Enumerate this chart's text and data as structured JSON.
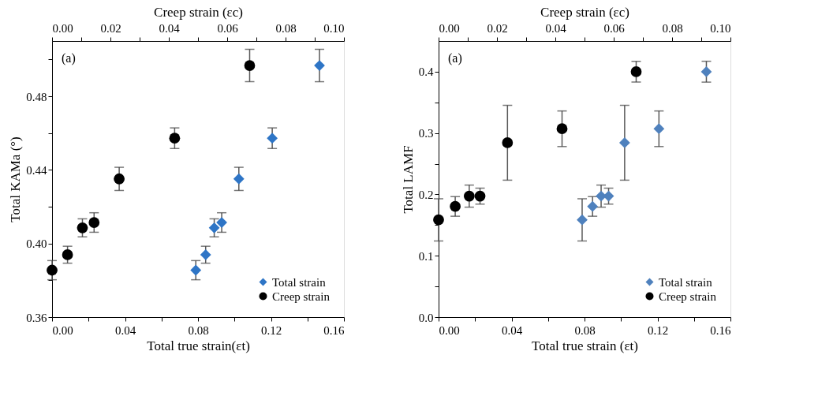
{
  "chart_data": [
    {
      "type": "scatter",
      "xlabel": "Total  true strain(εt)",
      "x2label": "Creep strain (εc)",
      "ylabel": "Total KAMa (°)",
      "xlim": [
        0,
        0.16
      ],
      "xticks": [
        {
          "value": 0,
          "label": "0.00"
        },
        {
          "value": 0.02,
          "label": null
        },
        {
          "value": 0.04,
          "label": "0.04"
        },
        {
          "value": 0.06,
          "label": null
        },
        {
          "value": 0.08,
          "label": "0.08"
        },
        {
          "value": 0.1,
          "label": null
        },
        {
          "value": 0.12,
          "label": "0.12"
        },
        {
          "value": 0.14,
          "label": null
        },
        {
          "value": 0.16,
          "label": "0.16"
        }
      ],
      "x2lim": [
        0,
        0.1
      ],
      "x2ticks": [
        {
          "value": 0,
          "label": "0.00"
        },
        {
          "value": 0.01,
          "label": null
        },
        {
          "value": 0.02,
          "label": "0.02"
        },
        {
          "value": 0.03,
          "label": null
        },
        {
          "value": 0.04,
          "label": "0.04"
        },
        {
          "value": 0.05,
          "label": null
        },
        {
          "value": 0.06,
          "label": "0.06"
        },
        {
          "value": 0.07,
          "label": null
        },
        {
          "value": 0.08,
          "label": "0.08"
        },
        {
          "value": 0.09,
          "label": null
        },
        {
          "value": 0.1,
          "label": "0.10"
        }
      ],
      "ylim": [
        0.36,
        0.51
      ],
      "yticks": [
        0.36,
        {
          "value": 0.38,
          "label": null
        },
        {
          "value": 0.4,
          "label": "0.40"
        },
        {
          "value": 0.42,
          "label": null
        },
        0.44,
        {
          "value": 0.46,
          "label": null
        },
        0.48,
        {
          "value": 0.5,
          "label": null
        }
      ],
      "grid": false,
      "legend": "bottom right",
      "annotations": [
        "(a)"
      ],
      "series": [
        {
          "name": "Total strain",
          "color": "#2e75c6",
          "marker": "diamond",
          "x": [
            0.0788,
            0.0842,
            0.0889,
            0.093,
            0.1024,
            0.1207,
            0.1466
          ],
          "values": [
            0.3855,
            0.3939,
            0.4085,
            0.4114,
            0.4351,
            0.4572,
            0.4967
          ],
          "errors": [
            0.0052,
            0.0046,
            0.0049,
            0.0053,
            0.0063,
            0.0056,
            0.0088
          ]
        },
        {
          "name": "Creep strain",
          "color": "#000000",
          "marker": "circle",
          "axis": "x2",
          "x": [
            0,
            0.0053,
            0.0104,
            0.0144,
            0.023,
            0.042,
            0.0677
          ],
          "values": [
            0.3855,
            0.3939,
            0.4085,
            0.4114,
            0.4351,
            0.4572,
            0.4967
          ],
          "errors": [
            0.0052,
            0.0046,
            0.0049,
            0.0053,
            0.0063,
            0.0056,
            0.0088
          ]
        }
      ]
    },
    {
      "type": "scatter",
      "xlabel": "Total  true strain (εt)",
      "x2label": "Creep strain (εc)",
      "ylabel": "Total  LAMF",
      "xlim": [
        0,
        0.16
      ],
      "xticks": [
        {
          "value": 0,
          "label": "0.00"
        },
        {
          "value": 0.02,
          "label": null
        },
        {
          "value": 0.04,
          "label": "0.04"
        },
        {
          "value": 0.06,
          "label": null
        },
        {
          "value": 0.08,
          "label": "0.08"
        },
        {
          "value": 0.1,
          "label": null
        },
        {
          "value": 0.12,
          "label": "0.12"
        },
        {
          "value": 0.14,
          "label": null
        },
        {
          "value": 0.16,
          "label": "0.16"
        }
      ],
      "x2lim": [
        0,
        0.1
      ],
      "x2ticks": [
        {
          "value": 0,
          "label": "0.00"
        },
        {
          "value": 0.01,
          "label": null
        },
        {
          "value": 0.02,
          "label": "0.02"
        },
        {
          "value": 0.03,
          "label": null
        },
        {
          "value": 0.04,
          "label": "0.04"
        },
        {
          "value": 0.05,
          "label": null
        },
        {
          "value": 0.06,
          "label": "0.06"
        },
        {
          "value": 0.07,
          "label": null
        },
        {
          "value": 0.08,
          "label": "0.08"
        },
        {
          "value": 0.09,
          "label": null
        },
        {
          "value": 0.1,
          "label": "0.10"
        }
      ],
      "ylim": [
        0,
        0.45
      ],
      "yticks": [
        {
          "value": 0,
          "label": "0.0"
        },
        {
          "value": 0.05,
          "label": null
        },
        0.1,
        {
          "value": 0.15,
          "label": null
        },
        0.2,
        {
          "value": 0.25,
          "label": null
        },
        0.3,
        {
          "value": 0.35,
          "label": null
        },
        0.4
      ],
      "grid": false,
      "legend": "bottom right",
      "annotations": [
        "(a)"
      ],
      "series": [
        {
          "name": "Total strain",
          "color": "#4f81bd",
          "marker": "diamond",
          "x": [
            0.0787,
            0.0844,
            0.0891,
            0.0932,
            0.102,
            0.1208,
            0.1468
          ],
          "values": [
            0.1585,
            0.1804,
            0.1972,
            0.1972,
            0.2842,
            0.307,
            0.4
          ],
          "errors": [
            0.0344,
            0.016,
            0.018,
            0.013,
            0.061,
            0.029,
            0.017
          ]
        },
        {
          "name": "Creep strain",
          "color": "#000000",
          "marker": "circle",
          "axis": "x2",
          "x": [
            0,
            0.0057,
            0.0105,
            0.0142,
            0.0236,
            0.0423,
            0.0677
          ],
          "values": [
            0.1585,
            0.1804,
            0.1972,
            0.1972,
            0.2842,
            0.307,
            0.4
          ],
          "errors": [
            0.0344,
            0.016,
            0.018,
            0.013,
            0.061,
            0.029,
            0.017
          ]
        }
      ]
    }
  ]
}
